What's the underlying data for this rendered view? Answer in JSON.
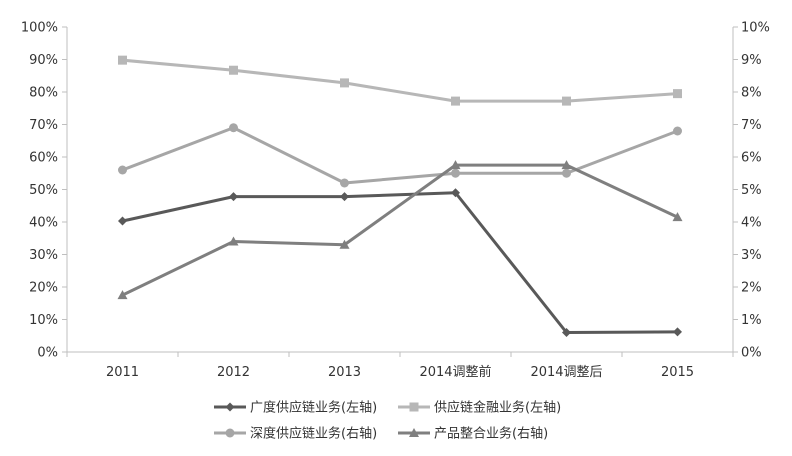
{
  "chart_data": {
    "type": "line",
    "categories": [
      "2011",
      "2012",
      "2013",
      "2014调整前",
      "2014调整后",
      "2015"
    ],
    "y_left": {
      "min": 0,
      "max": 100,
      "step": 10,
      "unit": "%",
      "ticks": [
        "0%",
        "10%",
        "20%",
        "30%",
        "40%",
        "50%",
        "60%",
        "70%",
        "80%",
        "90%",
        "100%"
      ]
    },
    "y_right": {
      "min": 0,
      "max": 10,
      "step": 1,
      "unit": "%",
      "ticks": [
        "0%",
        "1%",
        "2%",
        "3%",
        "4%",
        "5%",
        "6%",
        "7%",
        "8%",
        "9%",
        "10%"
      ]
    },
    "series": [
      {
        "name": "广度供应链业务(左轴)",
        "axis": "left",
        "marker": "diamond",
        "color": "#595959",
        "values": [
          40.3,
          47.8,
          47.8,
          49.0,
          6.0,
          6.2
        ]
      },
      {
        "name": "供应链金融业务(左轴)",
        "axis": "left",
        "marker": "square",
        "color": "#b7b7b7",
        "values": [
          89.8,
          86.7,
          82.8,
          77.2,
          77.2,
          79.5
        ]
      },
      {
        "name": "深度供应链业务(右轴)",
        "axis": "right",
        "marker": "circle",
        "color": "#a6a6a6",
        "values": [
          5.6,
          6.9,
          5.2,
          5.5,
          5.5,
          6.8
        ]
      },
      {
        "name": "产品整合业务(右轴)",
        "axis": "right",
        "marker": "triangle",
        "color": "#7f7f7f",
        "values": [
          1.75,
          3.4,
          3.3,
          5.75,
          5.75,
          4.15
        ]
      }
    ],
    "grid": false,
    "legend_position": "bottom"
  }
}
